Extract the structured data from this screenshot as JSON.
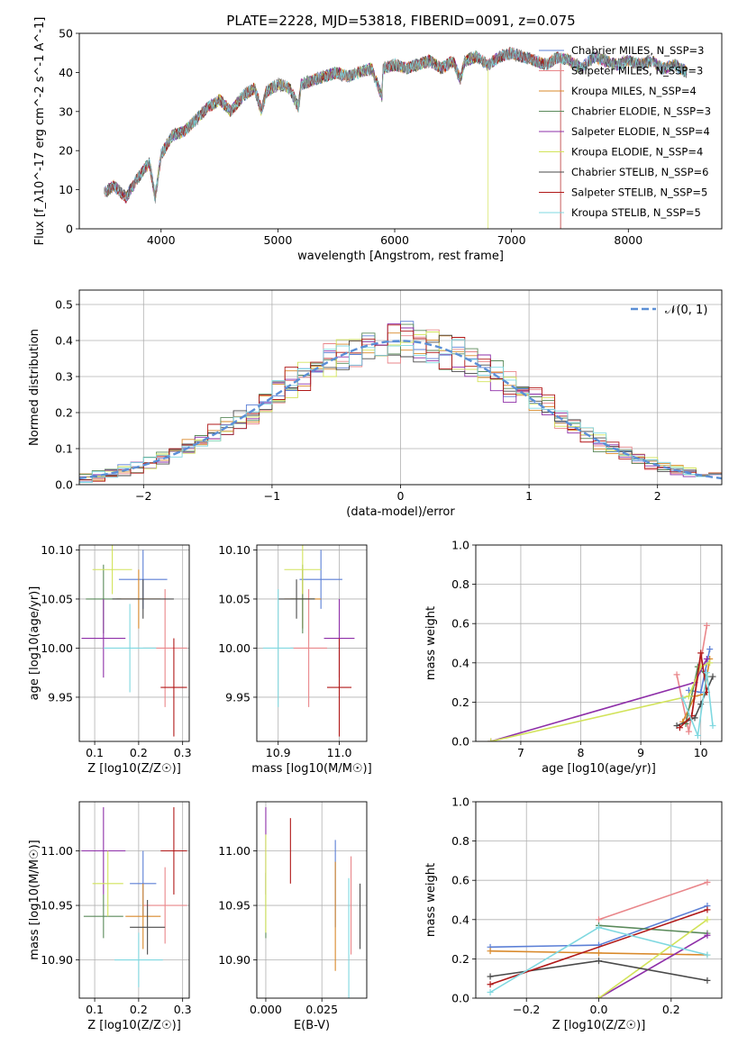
{
  "figure_title": "PLATE=2228, MJD=53818, FIBERID=0091, z=0.075",
  "chart_data": [
    {
      "id": "spectrum",
      "type": "line",
      "xlabel": "wavelength [Angstrom, rest frame]",
      "ylabel": "Flux [f_λ10^-17 erg cm^-2 s^-1 A^-1]",
      "xlim": [
        3300,
        8800
      ],
      "ylim": [
        0,
        50
      ],
      "xticks": [
        4000,
        5000,
        6000,
        7000,
        8000
      ],
      "yticks": [
        0,
        10,
        20,
        30,
        40,
        50
      ],
      "grid": false,
      "legend_position": "right",
      "observed_spectrum": {
        "x": [
          3500,
          3600,
          3700,
          3800,
          3900,
          3950,
          4000,
          4100,
          4200,
          4300,
          4400,
          4500,
          4600,
          4700,
          4800,
          4860,
          4900,
          5000,
          5100,
          5175,
          5200,
          5300,
          5400,
          5500,
          5600,
          5700,
          5800,
          5890,
          5900,
          6000,
          6100,
          6200,
          6300,
          6400,
          6500,
          6563,
          6600,
          6700,
          6800,
          6900,
          7000,
          7100,
          7200,
          7300,
          7400,
          7500,
          7600,
          7700,
          7800,
          7900,
          8000,
          8100,
          8200,
          8300,
          8400,
          8500
        ],
        "y": [
          9,
          11,
          8,
          13,
          17,
          8,
          19,
          24,
          25,
          28,
          31,
          33,
          30,
          34,
          36,
          30,
          35,
          37,
          36,
          31,
          37,
          38,
          39,
          40,
          39,
          40,
          41,
          34,
          41,
          42,
          41,
          42,
          43,
          41,
          43,
          38,
          43,
          44,
          42,
          44,
          45,
          44,
          43,
          42,
          44,
          43,
          41,
          44,
          43,
          42,
          43,
          42,
          43,
          41,
          42,
          40
        ]
      },
      "series": [
        {
          "name": "Chabrier MILES, N_SSP=3",
          "color": "#5b7fd6"
        },
        {
          "name": "Salpeter MILES, N_SSP=3",
          "color": "#e9868a"
        },
        {
          "name": "Kroupa MILES, N_SSP=4",
          "color": "#d9892a"
        },
        {
          "name": "Chabrier ELODIE, N_SSP=3",
          "color": "#5a8a5a"
        },
        {
          "name": "Salpeter ELODIE, N_SSP=4",
          "color": "#8e2fa8"
        },
        {
          "name": "Kroupa ELODIE, N_SSP=4",
          "color": "#d2e35a"
        },
        {
          "name": "Chabrier STELIB, N_SSP=6",
          "color": "#4a4a4a"
        },
        {
          "name": "Salpeter STELIB, N_SSP=5",
          "color": "#b01818"
        },
        {
          "name": "Kroupa STELIB, N_SSP=5",
          "color": "#7fd8e0"
        }
      ]
    },
    {
      "id": "residuals",
      "type": "line",
      "xlabel": "(data-model)/error",
      "ylabel": "Normed distribution",
      "xlim": [
        -2.5,
        2.5
      ],
      "ylim": [
        0,
        0.54
      ],
      "xticks": [
        -2,
        -1,
        0,
        1,
        2
      ],
      "yticks": [
        0.0,
        0.1,
        0.2,
        0.3,
        0.4,
        0.5
      ],
      "grid": true,
      "legend_position": "top-right",
      "normal_curve": {
        "label": "𝒩(0, 1)",
        "color": "#5b8fd6"
      },
      "histogram_bins": [
        -2.5,
        -2.4,
        -2.3,
        -2.2,
        -2.1,
        -2.0,
        -1.9,
        -1.8,
        -1.7,
        -1.6,
        -1.5,
        -1.4,
        -1.3,
        -1.2,
        -1.1,
        -1.0,
        -0.9,
        -0.8,
        -0.7,
        -0.6,
        -0.5,
        -0.4,
        -0.3,
        -0.2,
        -0.1,
        0.0,
        0.1,
        0.2,
        0.3,
        0.4,
        0.5,
        0.6,
        0.7,
        0.8,
        0.9,
        1.0,
        1.1,
        1.2,
        1.3,
        1.4,
        1.5,
        1.6,
        1.7,
        1.8,
        1.9,
        2.0,
        2.1,
        2.2,
        2.3,
        2.4
      ]
    },
    {
      "id": "age_vs_Z",
      "type": "scatter",
      "xlabel": "Z [log10(Z/Z☉)]",
      "ylabel": "age  [log10(age/yr)]",
      "xlim": [
        0.065,
        0.315
      ],
      "ylim": [
        9.905,
        10.105
      ],
      "xticks": [
        0.1,
        0.2,
        0.3
      ],
      "yticks": [
        9.95,
        10.0,
        10.05,
        10.1
      ],
      "grid": true,
      "points": [
        {
          "x": 0.21,
          "y": 10.07,
          "xerr": 0.055,
          "yerr": 0.03,
          "color": "#5b7fd6"
        },
        {
          "x": 0.26,
          "y": 10.0,
          "xerr": 0.05,
          "yerr": 0.06,
          "color": "#e9868a"
        },
        {
          "x": 0.2,
          "y": 10.05,
          "xerr": 0.05,
          "yerr": 0.03,
          "color": "#d9892a"
        },
        {
          "x": 0.12,
          "y": 10.05,
          "xerr": 0.04,
          "yerr": 0.035,
          "color": "#5a8a5a"
        },
        {
          "x": 0.12,
          "y": 10.01,
          "xerr": 0.05,
          "yerr": 0.04,
          "color": "#8e2fa8"
        },
        {
          "x": 0.14,
          "y": 10.08,
          "xerr": 0.045,
          "yerr": 0.025,
          "color": "#d2e35a"
        },
        {
          "x": 0.21,
          "y": 10.05,
          "xerr": 0.07,
          "yerr": 0.02,
          "color": "#4a4a4a"
        },
        {
          "x": 0.28,
          "y": 9.96,
          "xerr": 0.03,
          "yerr": 0.05,
          "color": "#b01818"
        },
        {
          "x": 0.18,
          "y": 10.0,
          "xerr": 0.06,
          "yerr": 0.045,
          "color": "#7fd8e0"
        }
      ]
    },
    {
      "id": "age_vs_mass",
      "type": "scatter",
      "xlabel": "mass [log10(M/M☉)]",
      "ylabel": "",
      "xlim": [
        10.865,
        11.045
      ],
      "ylim": [
        9.905,
        10.105
      ],
      "xticks": [
        10.9,
        11.0
      ],
      "yticks": [
        9.95,
        10.0,
        10.05,
        10.1
      ],
      "grid": true,
      "points": [
        {
          "x": 10.97,
          "y": 10.07,
          "xerr": 0.035,
          "yerr": 0.03,
          "color": "#5b7fd6"
        },
        {
          "x": 10.95,
          "y": 10.0,
          "xerr": 0.03,
          "yerr": 0.06,
          "color": "#e9868a"
        },
        {
          "x": 10.94,
          "y": 10.05,
          "xerr": 0.03,
          "yerr": 0.03,
          "color": "#d9892a"
        },
        {
          "x": 10.94,
          "y": 10.05,
          "xerr": 0.02,
          "yerr": 0.035,
          "color": "#5a8a5a"
        },
        {
          "x": 11.0,
          "y": 10.01,
          "xerr": 0.025,
          "yerr": 0.04,
          "color": "#8e2fa8"
        },
        {
          "x": 10.94,
          "y": 10.08,
          "xerr": 0.03,
          "yerr": 0.025,
          "color": "#d2e35a"
        },
        {
          "x": 10.93,
          "y": 10.05,
          "xerr": 0.03,
          "yerr": 0.02,
          "color": "#4a4a4a"
        },
        {
          "x": 11.0,
          "y": 9.96,
          "xerr": 0.02,
          "yerr": 0.05,
          "color": "#b01818"
        },
        {
          "x": 10.9,
          "y": 10.0,
          "xerr": 0.025,
          "yerr": 0.06,
          "color": "#7fd8e0"
        }
      ]
    },
    {
      "id": "massweight_vs_age",
      "type": "line",
      "xlabel": "age  [log10(age/yr)]",
      "ylabel": "mass weight",
      "xlim": [
        6.25,
        10.35
      ],
      "ylim": [
        0.0,
        1.0
      ],
      "xticks": [
        7,
        8,
        9,
        10
      ],
      "yticks": [
        0.0,
        0.2,
        0.4,
        0.6,
        0.8,
        1.0
      ],
      "grid": true,
      "series": [
        {
          "color": "#5b7fd6",
          "x": [
            9.8,
            10.0,
            10.15
          ],
          "y": [
            0.26,
            0.25,
            0.47
          ]
        },
        {
          "color": "#e9868a",
          "x": [
            9.6,
            9.8,
            10.1
          ],
          "y": [
            0.34,
            0.05,
            0.59
          ]
        },
        {
          "color": "#d9892a",
          "x": [
            9.7,
            9.9,
            10.05,
            10.15
          ],
          "y": [
            0.1,
            0.23,
            0.24,
            0.42
          ]
        },
        {
          "color": "#5a8a5a",
          "x": [
            9.75,
            9.95,
            10.1
          ],
          "y": [
            0.09,
            0.38,
            0.33
          ]
        },
        {
          "color": "#8e2fa8",
          "x": [
            6.5,
            9.9,
            10.1
          ],
          "y": [
            0.0,
            0.3,
            0.42
          ]
        },
        {
          "color": "#d2e35a",
          "x": [
            6.5,
            9.8,
            10.0,
            10.15
          ],
          "y": [
            0.0,
            0.23,
            0.38,
            0.4
          ]
        },
        {
          "color": "#4a4a4a",
          "x": [
            9.6,
            9.9,
            10.0,
            10.2
          ],
          "y": [
            0.08,
            0.12,
            0.19,
            0.33
          ]
        },
        {
          "color": "#b01818",
          "x": [
            9.65,
            9.85,
            10.0,
            10.1
          ],
          "y": [
            0.07,
            0.13,
            0.45,
            0.25
          ]
        },
        {
          "color": "#7fd8e0",
          "x": [
            9.7,
            9.95,
            10.1,
            10.2
          ],
          "y": [
            0.22,
            0.03,
            0.35,
            0.08
          ]
        }
      ]
    },
    {
      "id": "mass_vs_Z",
      "type": "scatter",
      "xlabel": "Z [log10(Z/Z☉)]",
      "ylabel": "mass [log10(M/M☉)]",
      "xlim": [
        0.065,
        0.315
      ],
      "ylim": [
        10.865,
        11.045
      ],
      "xticks": [
        0.1,
        0.2,
        0.3
      ],
      "yticks": [
        10.9,
        10.95,
        11.0
      ],
      "grid": true,
      "points": [
        {
          "x": 0.21,
          "y": 10.97,
          "xerr": 0.03,
          "yerr": 0.03,
          "color": "#5b7fd6"
        },
        {
          "x": 0.26,
          "y": 10.95,
          "xerr": 0.05,
          "yerr": 0.035,
          "color": "#e9868a"
        },
        {
          "x": 0.21,
          "y": 10.94,
          "xerr": 0.04,
          "yerr": 0.03,
          "color": "#d9892a"
        },
        {
          "x": 0.12,
          "y": 10.94,
          "xerr": 0.045,
          "yerr": 0.02,
          "color": "#5a8a5a"
        },
        {
          "x": 0.12,
          "y": 11.0,
          "xerr": 0.05,
          "yerr": 0.04,
          "color": "#8e2fa8"
        },
        {
          "x": 0.13,
          "y": 10.97,
          "xerr": 0.035,
          "yerr": 0.03,
          "color": "#d2e35a"
        },
        {
          "x": 0.22,
          "y": 10.93,
          "xerr": 0.04,
          "yerr": 0.025,
          "color": "#4a4a4a"
        },
        {
          "x": 0.28,
          "y": 11.0,
          "xerr": 0.03,
          "yerr": 0.04,
          "color": "#b01818"
        },
        {
          "x": 0.2,
          "y": 10.9,
          "xerr": 0.055,
          "yerr": 0.025,
          "color": "#7fd8e0"
        }
      ]
    },
    {
      "id": "mass_vs_EBV",
      "type": "scatter",
      "xlabel": "E(B-V)",
      "ylabel": "",
      "xlim": [
        -0.004,
        0.045
      ],
      "ylim": [
        10.865,
        11.045
      ],
      "xticks": [
        0.0,
        0.025
      ],
      "yticks": [
        10.9,
        10.95,
        11.0
      ],
      "grid": true,
      "points": [
        {
          "x": 0.031,
          "y": 10.97,
          "xerr": 0.0,
          "yerr": 0.04,
          "color": "#5b7fd6"
        },
        {
          "x": 0.038,
          "y": 10.95,
          "xerr": 0.0,
          "yerr": 0.045,
          "color": "#e9868a"
        },
        {
          "x": 0.031,
          "y": 10.94,
          "xerr": 0.0,
          "yerr": 0.05,
          "color": "#d9892a"
        },
        {
          "x": 0.0,
          "y": 10.95,
          "xerr": 0.0,
          "yerr": 0.03,
          "color": "#5a8a5a"
        },
        {
          "x": 0.0,
          "y": 11.0,
          "xerr": 0.0,
          "yerr": 0.04,
          "color": "#8e2fa8"
        },
        {
          "x": 0.0,
          "y": 10.97,
          "xerr": 0.0,
          "yerr": 0.045,
          "color": "#d2e35a"
        },
        {
          "x": 0.042,
          "y": 10.94,
          "xerr": 0.0,
          "yerr": 0.03,
          "color": "#4a4a4a"
        },
        {
          "x": 0.011,
          "y": 11.0,
          "xerr": 0.0,
          "yerr": 0.03,
          "color": "#b01818"
        },
        {
          "x": 0.037,
          "y": 10.92,
          "xerr": 0.0,
          "yerr": 0.055,
          "color": "#7fd8e0"
        }
      ]
    },
    {
      "id": "massweight_vs_Z",
      "type": "line",
      "xlabel": "Z [log10(Z/Z☉)]",
      "ylabel": "mass weight",
      "xlim": [
        -0.34,
        0.34
      ],
      "ylim": [
        0.0,
        1.0
      ],
      "xticks": [
        -0.2,
        0.0,
        0.2
      ],
      "yticks": [
        0.0,
        0.2,
        0.4,
        0.6,
        0.8,
        1.0
      ],
      "grid": true,
      "series": [
        {
          "color": "#5b7fd6",
          "x": [
            -0.3,
            0.0,
            0.3
          ],
          "y": [
            0.26,
            0.27,
            0.47
          ]
        },
        {
          "color": "#e9868a",
          "x": [
            0.0,
            0.3
          ],
          "y": [
            0.4,
            0.59
          ]
        },
        {
          "color": "#d9892a",
          "x": [
            -0.3,
            0.0,
            0.3
          ],
          "y": [
            0.24,
            0.23,
            0.22
          ]
        },
        {
          "color": "#5a8a5a",
          "x": [
            0.0,
            0.3
          ],
          "y": [
            0.37,
            0.33
          ]
        },
        {
          "color": "#8e2fa8",
          "x": [
            0.0,
            0.3
          ],
          "y": [
            0.0,
            0.32
          ]
        },
        {
          "color": "#d2e35a",
          "x": [
            0.0,
            0.3
          ],
          "y": [
            0.0,
            0.4
          ]
        },
        {
          "color": "#4a4a4a",
          "x": [
            -0.3,
            0.0,
            0.3
          ],
          "y": [
            0.11,
            0.19,
            0.09
          ]
        },
        {
          "color": "#b01818",
          "x": [
            -0.3,
            0.3
          ],
          "y": [
            0.07,
            0.45
          ]
        },
        {
          "color": "#7fd8e0",
          "x": [
            -0.3,
            0.0,
            0.3
          ],
          "y": [
            0.03,
            0.36,
            0.22
          ]
        }
      ]
    }
  ]
}
